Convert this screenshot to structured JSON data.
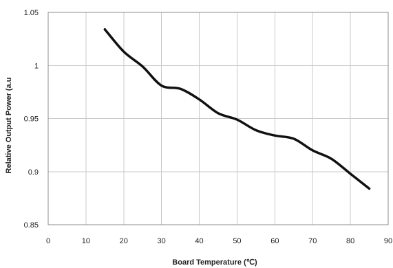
{
  "chart_data": {
    "type": "line",
    "xlabel": "Board Temperature (℃)",
    "ylabel": "Relative Output Power (a.u",
    "xlim": [
      0,
      90
    ],
    "ylim": [
      0.85,
      1.05
    ],
    "xticks": [
      0,
      10,
      20,
      30,
      40,
      50,
      60,
      70,
      80,
      90
    ],
    "yticks": [
      0.85,
      0.9,
      0.95,
      1,
      1.05
    ],
    "xtick_labels": [
      "0",
      "10",
      "20",
      "30",
      "40",
      "50",
      "60",
      "70",
      "80",
      "90"
    ],
    "ytick_labels": [
      "0.85",
      "0.9",
      "0.95",
      "1",
      "1.05"
    ],
    "grid": true,
    "series": [
      {
        "color": "#111111",
        "x": [
          15,
          20,
          25,
          30,
          35,
          40,
          45,
          50,
          55,
          60,
          65,
          70,
          75,
          80,
          85
        ],
        "y": [
          1.034,
          1.013,
          0.999,
          0.981,
          0.978,
          0.968,
          0.955,
          0.949,
          0.939,
          0.934,
          0.931,
          0.92,
          0.912,
          0.898,
          0.884
        ]
      }
    ]
  }
}
